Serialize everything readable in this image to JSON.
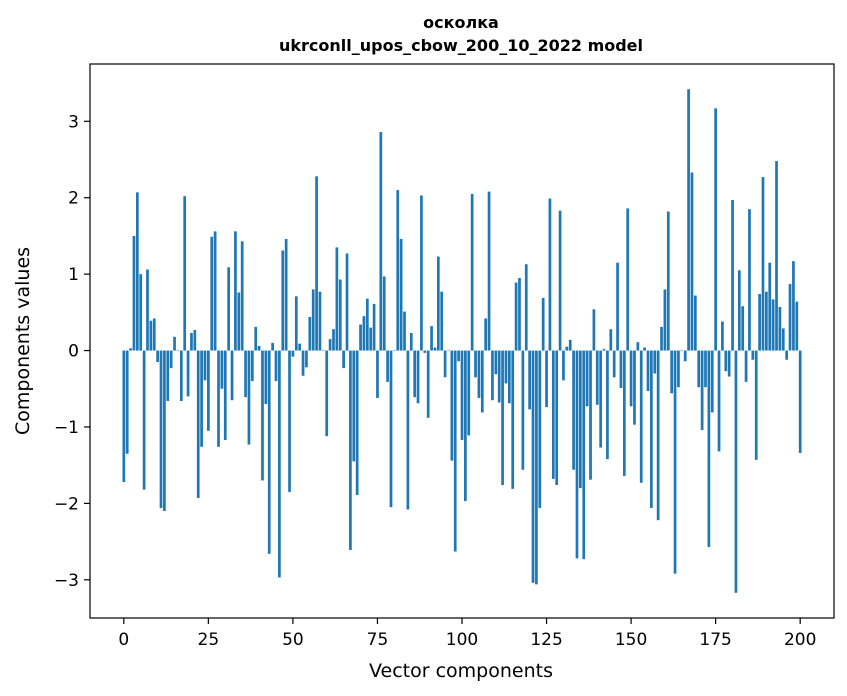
{
  "chart_data": {
    "type": "bar",
    "title_line1": "осколка",
    "title_line2": "ukrconll_upos_cbow_200_10_2022 model",
    "xlabel": "Vector components",
    "ylabel": "Components values",
    "xlim": [
      -10,
      210
    ],
    "ylim": [
      -3.5,
      3.75
    ],
    "grid": false,
    "legend": "none",
    "bar_color": "#1f77b4",
    "xticks": [
      0,
      25,
      50,
      75,
      100,
      125,
      150,
      175,
      200
    ],
    "xtick_labels": [
      "0",
      "25",
      "50",
      "75",
      "100",
      "125",
      "150",
      "175",
      "200"
    ],
    "yticks": [
      -3,
      -2,
      -1,
      0,
      1,
      2,
      3
    ],
    "ytick_labels": [
      "−3",
      "−2",
      "−1",
      "0",
      "1",
      "2",
      "3"
    ],
    "series": [
      {
        "values": [
          -1.72,
          -1.35,
          0.03,
          1.5,
          2.07,
          1.0,
          -1.82,
          1.06,
          0.39,
          0.42,
          -0.15,
          -2.06,
          -2.1,
          -0.66,
          -0.23,
          0.18,
          0.0,
          -0.66,
          2.02,
          -0.6,
          0.23,
          0.27,
          -1.93,
          -1.26,
          -0.39,
          -1.05,
          1.49,
          1.56,
          -1.26,
          -0.5,
          -1.17,
          1.09,
          -0.65,
          1.56,
          0.76,
          1.43,
          -0.61,
          -1.23,
          -0.4,
          0.31,
          0.06,
          -1.7,
          -0.7,
          -2.66,
          0.1,
          -0.4,
          -2.97,
          1.31,
          1.46,
          -1.85,
          -0.08,
          0.71,
          0.09,
          -0.33,
          -0.22,
          0.44,
          0.8,
          2.28,
          0.77,
          0.0,
          -1.12,
          0.15,
          0.28,
          1.35,
          0.93,
          -0.23,
          1.27,
          -2.61,
          -1.45,
          -1.89,
          0.34,
          0.45,
          0.68,
          0.3,
          0.61,
          -0.62,
          2.86,
          0.97,
          -0.41,
          -2.05,
          0.0,
          2.1,
          1.46,
          0.51,
          -2.08,
          0.23,
          -0.61,
          -0.69,
          2.03,
          -0.03,
          -0.88,
          0.32,
          0.04,
          1.23,
          0.77,
          -0.35,
          0.0,
          -1.44,
          -2.63,
          -0.14,
          -1.17,
          -1.97,
          -1.11,
          2.05,
          -0.35,
          -0.62,
          -0.81,
          0.42,
          2.08,
          -0.65,
          -0.31,
          -0.68,
          -1.76,
          -0.43,
          -0.69,
          -1.81,
          0.89,
          0.95,
          -1.56,
          1.13,
          -0.77,
          -3.04,
          -3.06,
          -2.06,
          0.69,
          -0.74,
          1.99,
          -1.68,
          -1.76,
          1.83,
          -0.39,
          0.05,
          0.14,
          -1.56,
          -2.72,
          -1.8,
          -2.73,
          -0.73,
          -1.69,
          0.54,
          -0.71,
          -1.27,
          0.02,
          -1.42,
          0.28,
          -0.35,
          1.15,
          -0.49,
          -1.64,
          1.86,
          -0.73,
          -0.97,
          0.11,
          -1.73,
          0.04,
          -0.53,
          -2.06,
          -0.3,
          -2.22,
          0.31,
          0.8,
          1.82,
          -0.56,
          -2.92,
          -0.48,
          0.0,
          -0.14,
          3.42,
          2.33,
          0.72,
          -0.48,
          -1.04,
          -0.48,
          -2.57,
          -0.81,
          3.17,
          -1.32,
          0.38,
          -0.27,
          -0.34,
          1.97,
          -3.17,
          1.05,
          0.58,
          -0.41,
          1.85,
          -0.12,
          -1.43,
          0.74,
          2.27,
          0.77,
          1.15,
          0.67,
          2.48,
          0.57,
          0.29,
          -0.12,
          0.87,
          1.17,
          0.64,
          -1.34
        ]
      }
    ]
  }
}
